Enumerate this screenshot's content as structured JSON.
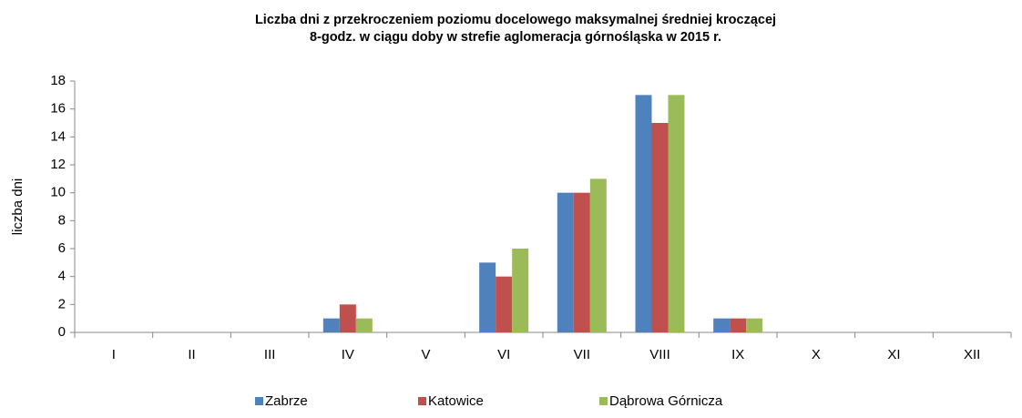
{
  "chart_data": {
    "type": "bar",
    "title": [
      "Liczba dni z przekroczeniem poziomu docelowego maksymalnej średniej kroczącej",
      "8-godz. w ciągu doby w strefie aglomeracja górnośląska w 2015 r."
    ],
    "ylabel": "liczba dni",
    "categories": [
      "I",
      "II",
      "III",
      "IV",
      "V",
      "VI",
      "VII",
      "VIII",
      "IX",
      "X",
      "XI",
      "XII"
    ],
    "series": [
      {
        "name": "Zabrze",
        "color": "#4f81bd",
        "values": [
          0,
          0,
          0,
          1,
          0,
          5,
          10,
          17,
          1,
          0,
          0,
          0
        ]
      },
      {
        "name": "Katowice",
        "color": "#c0504d",
        "values": [
          0,
          0,
          0,
          2,
          0,
          4,
          10,
          15,
          1,
          0,
          0,
          0
        ]
      },
      {
        "name": "Dąbrowa Górnicza",
        "color": "#9bbb59",
        "values": [
          0,
          0,
          0,
          1,
          0,
          6,
          11,
          17,
          1,
          0,
          0,
          0
        ]
      }
    ],
    "ylim": [
      0,
      18
    ],
    "yticks": [
      0,
      2,
      4,
      6,
      8,
      10,
      12,
      14,
      16,
      18
    ],
    "grid": false,
    "legend": "bottom"
  }
}
